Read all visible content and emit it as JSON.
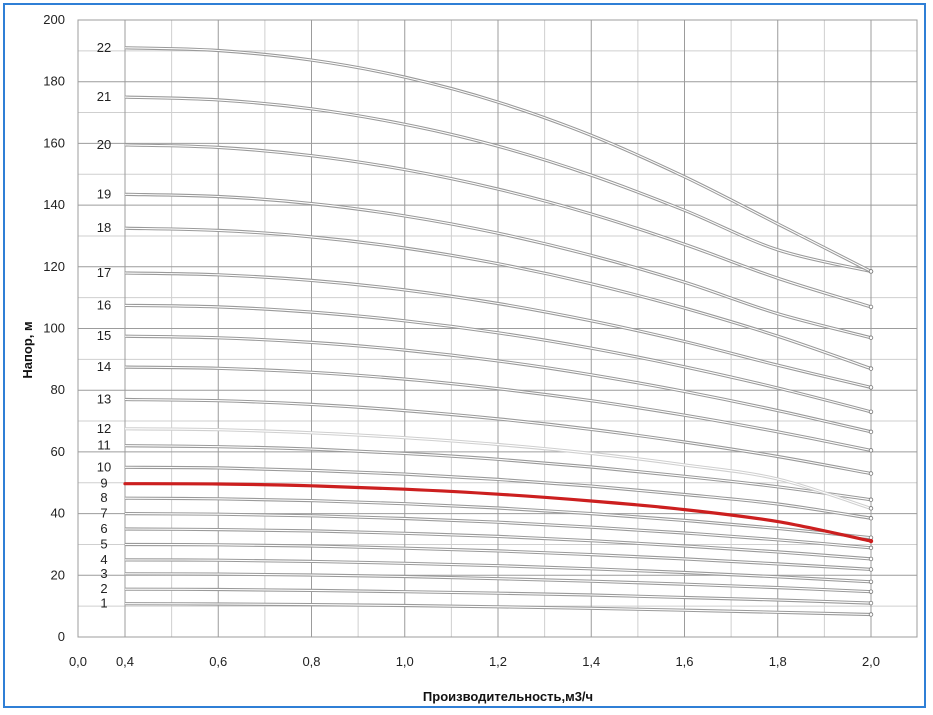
{
  "chart_data": {
    "type": "line",
    "xlabel": "Производительность,м3/ч",
    "ylabel": "Напор, м",
    "xlim": [
      0.0,
      2.0
    ],
    "ylim": [
      0,
      200
    ],
    "x_ticks": [
      "0,0",
      "0,4",
      "0,6",
      "0,8",
      "1,0",
      "1,2",
      "1,4",
      "1,6",
      "1,8",
      "2,0"
    ],
    "y_ticks": [
      "0",
      "20",
      "40",
      "60",
      "80",
      "100",
      "120",
      "140",
      "160",
      "180",
      "200"
    ],
    "grid": true,
    "x": [
      0.4,
      0.6,
      0.8,
      1.0,
      1.2,
      1.4,
      1.6,
      1.8,
      2.0
    ],
    "colors": {
      "default": "#9a9a9a",
      "highlight": "#cc1f1f",
      "light": "#cfcfcf",
      "frame": "#2f7fd6"
    },
    "series": [
      {
        "name": "1",
        "values": [
          10.8,
          10.7,
          10.5,
          10.2,
          9.8,
          9.3,
          8.7,
          8.0,
          7.3
        ]
      },
      {
        "name": "2",
        "values": [
          15.5,
          15.4,
          15.1,
          14.7,
          14.2,
          13.6,
          12.8,
          12.0,
          11.0
        ]
      },
      {
        "name": "3",
        "values": [
          20.5,
          20.4,
          20.1,
          19.6,
          18.9,
          18.1,
          17.1,
          16.0,
          14.7
        ]
      },
      {
        "name": "4",
        "values": [
          25.0,
          24.9,
          24.5,
          23.9,
          23.1,
          22.1,
          20.9,
          19.5,
          17.9
        ]
      },
      {
        "name": "5",
        "values": [
          30.0,
          29.9,
          29.5,
          28.8,
          27.9,
          26.7,
          25.3,
          23.7,
          21.9
        ]
      },
      {
        "name": "6",
        "values": [
          35.0,
          34.8,
          34.4,
          33.6,
          32.6,
          31.2,
          29.5,
          27.6,
          25.3
        ]
      },
      {
        "name": "7",
        "values": [
          40.0,
          39.8,
          39.3,
          38.4,
          37.2,
          35.6,
          33.7,
          31.5,
          28.9
        ]
      },
      {
        "name": "8",
        "values": [
          45.0,
          44.8,
          44.2,
          43.2,
          41.8,
          40.0,
          37.8,
          35.2,
          32.2
        ]
      },
      {
        "name": "9",
        "values": [
          49.7,
          49.6,
          49.0,
          47.9,
          46.3,
          44.1,
          41.3,
          37.4,
          31.1
        ],
        "highlight": true
      },
      {
        "name": "10",
        "values": [
          55.0,
          54.8,
          54.0,
          52.8,
          51.1,
          48.9,
          46.2,
          43.1,
          38.5
        ]
      },
      {
        "name": "11",
        "values": [
          62.0,
          61.7,
          60.9,
          59.5,
          57.6,
          55.1,
          52.1,
          48.7,
          44.5
        ]
      },
      {
        "name": "12",
        "values": [
          67.5,
          67.2,
          66.2,
          64.6,
          62.4,
          59.5,
          55.8,
          51.2,
          41.7
        ],
        "light": true
      },
      {
        "name": "13",
        "values": [
          77.0,
          76.6,
          75.4,
          73.4,
          70.7,
          67.3,
          63.2,
          58.5,
          53.0
        ]
      },
      {
        "name": "14",
        "values": [
          87.5,
          87.1,
          85.8,
          83.6,
          80.5,
          76.6,
          71.9,
          66.5,
          60.5
        ]
      },
      {
        "name": "15",
        "values": [
          97.5,
          97.0,
          95.5,
          93.0,
          89.5,
          85.0,
          79.6,
          73.4,
          66.5
        ]
      },
      {
        "name": "16",
        "values": [
          107.5,
          107.0,
          105.3,
          102.5,
          98.6,
          93.6,
          87.6,
          80.7,
          73.0
        ]
      },
      {
        "name": "17",
        "values": [
          118.0,
          117.4,
          115.6,
          112.5,
          108.1,
          102.5,
          95.8,
          88.1,
          80.9
        ]
      },
      {
        "name": "18",
        "values": [
          132.5,
          131.8,
          129.7,
          126.1,
          121.0,
          114.5,
          106.6,
          97.5,
          87.0
        ]
      },
      {
        "name": "19",
        "values": [
          143.5,
          142.8,
          140.5,
          136.5,
          130.9,
          123.7,
          115.0,
          104.8,
          97.0
        ]
      },
      {
        "name": "20",
        "values": [
          159.5,
          158.7,
          156.0,
          151.5,
          145.2,
          137.1,
          127.3,
          116.3,
          107.0
        ]
      },
      {
        "name": "21",
        "values": [
          175.0,
          174.1,
          171.2,
          166.2,
          159.1,
          149.7,
          138.3,
          125.5,
          118.5
        ]
      },
      {
        "name": "22",
        "values": [
          191.0,
          190.1,
          187.0,
          181.5,
          173.4,
          162.6,
          149.2,
          133.9,
          118.5
        ]
      }
    ]
  }
}
